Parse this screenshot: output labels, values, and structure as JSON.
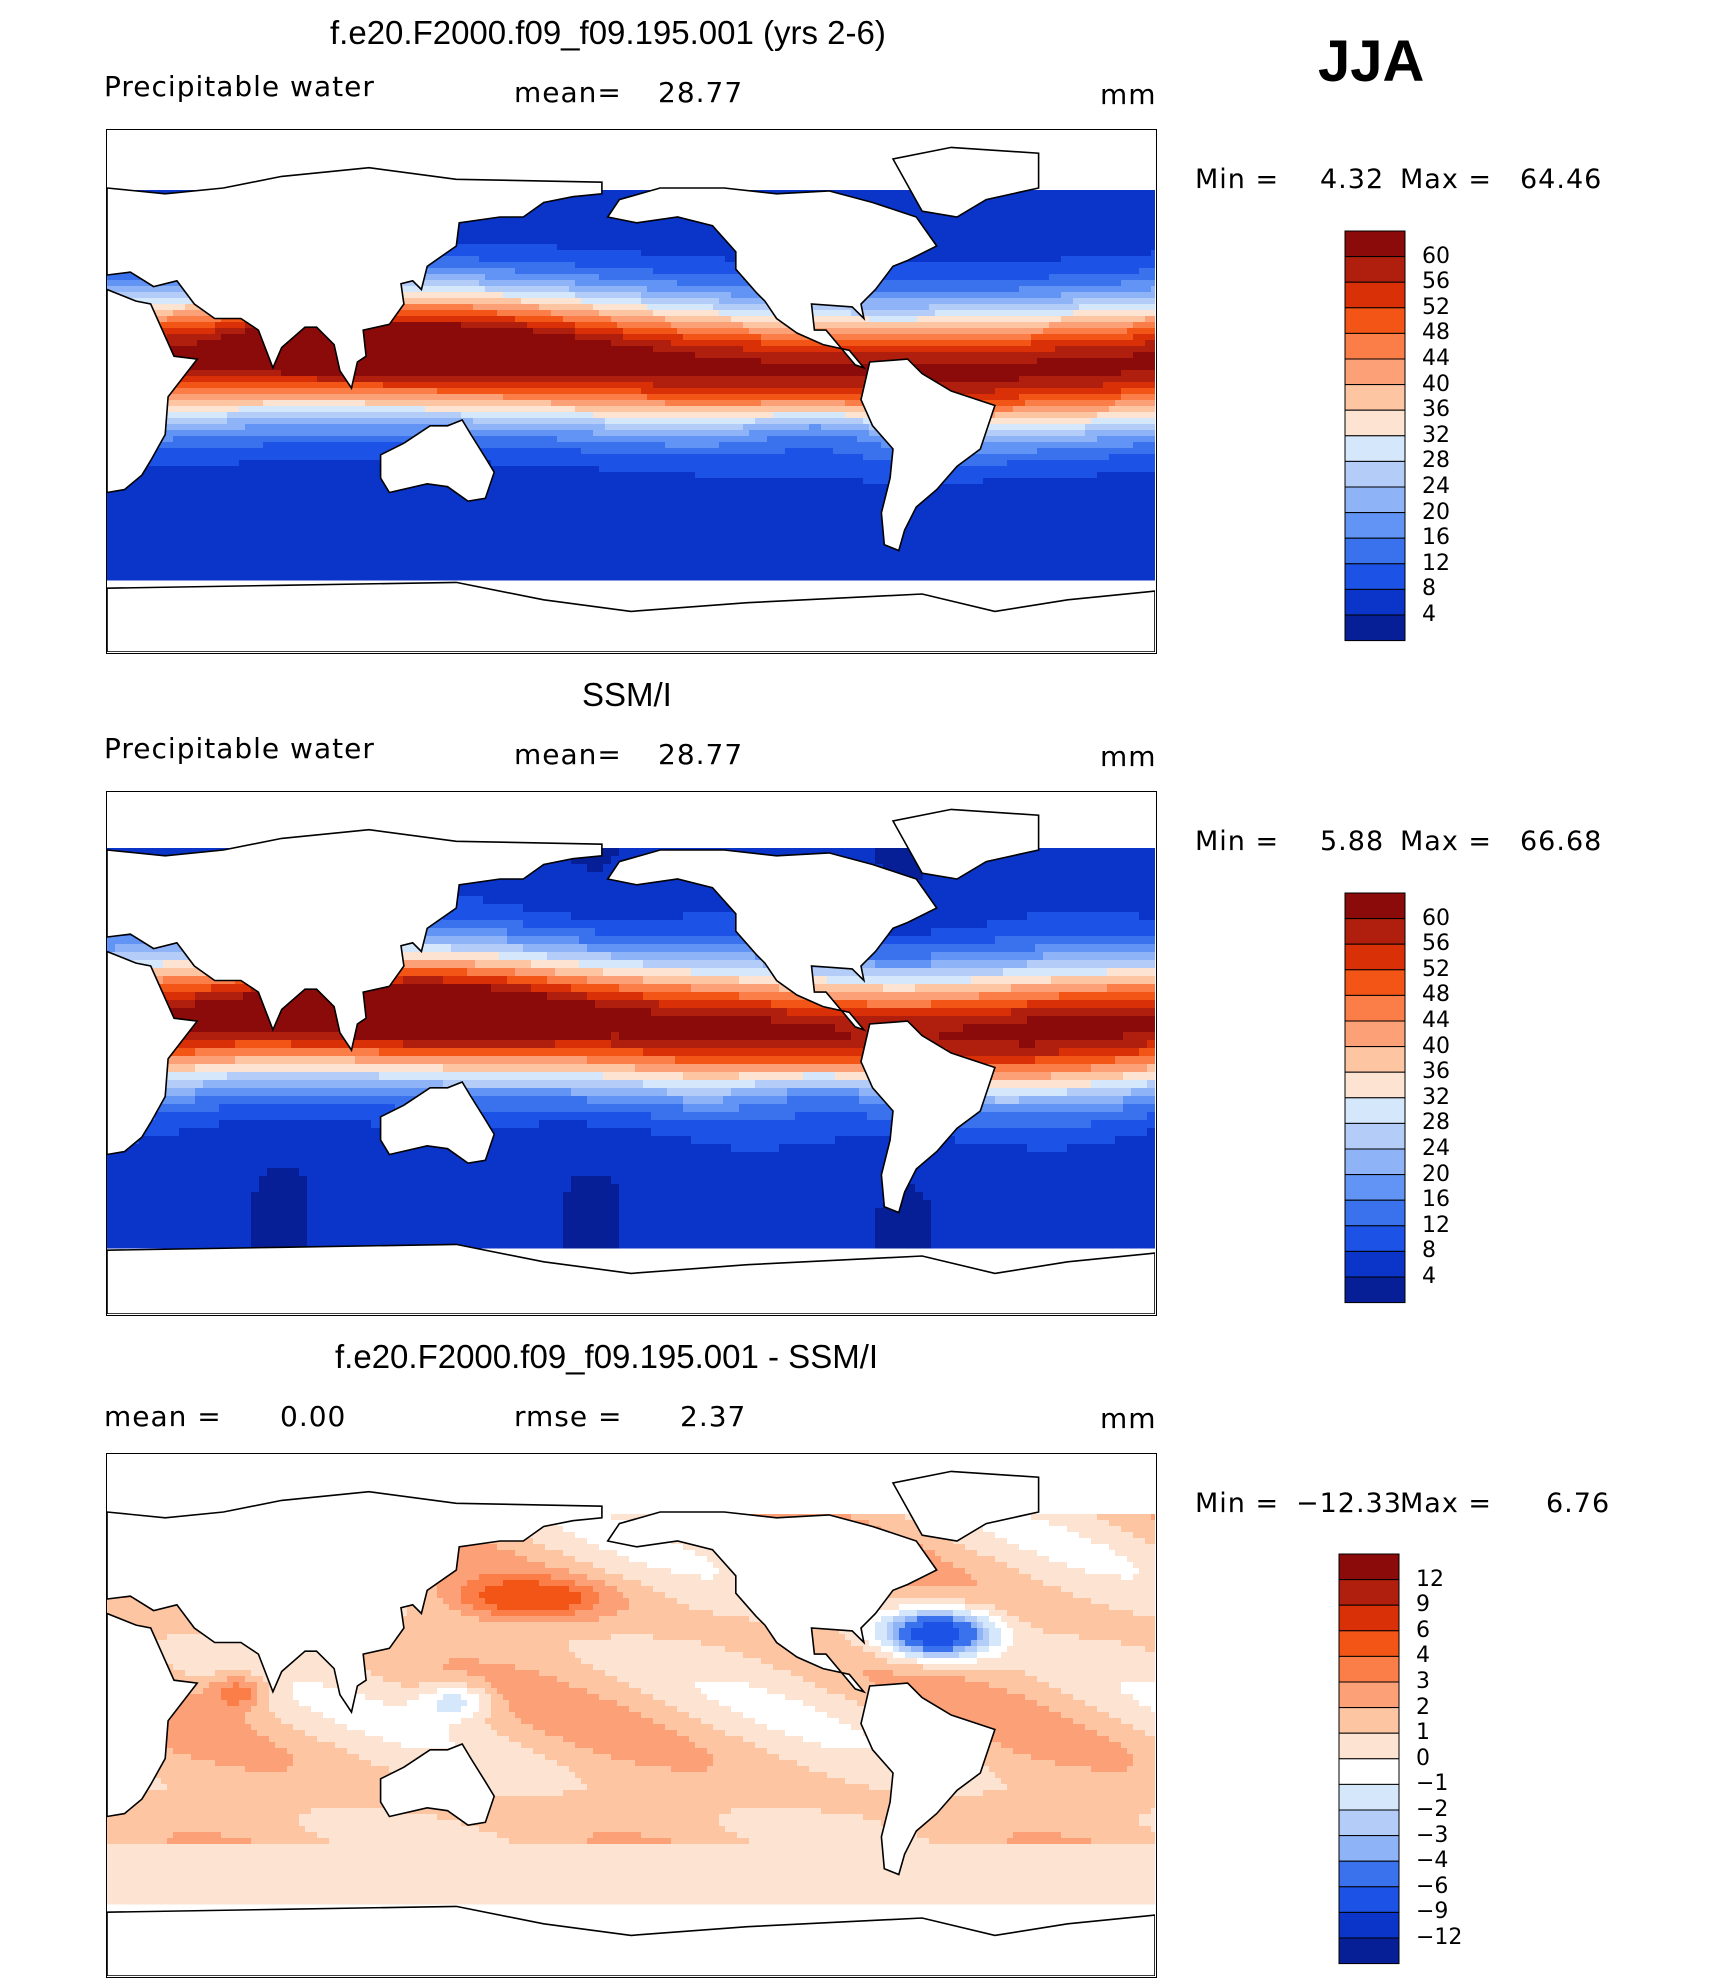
{
  "season": "JJA",
  "chart_data": [
    {
      "type": "heatmap",
      "title": "f.e20.F2000.f09_f09.195.001 (yrs 2-6)",
      "variable": "Precipitable water",
      "stat_label": "mean=",
      "stat_value": "28.77",
      "units": "mm",
      "min_label": "Min =",
      "min_value": "4.32",
      "max_label": "Max =",
      "max_value": "64.46",
      "levels": [
        "60",
        "56",
        "52",
        "48",
        "44",
        "40",
        "36",
        "32",
        "28",
        "24",
        "20",
        "16",
        "12",
        "8",
        "4"
      ],
      "colors": [
        "#8b0a0a",
        "#b01e0e",
        "#d93008",
        "#f25516",
        "#fb7d47",
        "#fca077",
        "#fdc5a2",
        "#fde4d2",
        "#d4e7fb",
        "#b3cdf8",
        "#8eb3f7",
        "#6294f5",
        "#3a71ed",
        "#1c52e6",
        "#0b35c8",
        "#071f96"
      ]
    },
    {
      "type": "heatmap",
      "title": "SSM/I",
      "variable": "Precipitable water",
      "stat_label": "mean=",
      "stat_value": "28.77",
      "units": "mm",
      "min_label": "Min =",
      "min_value": "5.88",
      "max_label": "Max =",
      "max_value": "66.68",
      "levels": [
        "60",
        "56",
        "52",
        "48",
        "44",
        "40",
        "36",
        "32",
        "28",
        "24",
        "20",
        "16",
        "12",
        "8",
        "4"
      ],
      "colors": [
        "#8b0a0a",
        "#b01e0e",
        "#d93008",
        "#f25516",
        "#fb7d47",
        "#fca077",
        "#fdc5a2",
        "#fde4d2",
        "#d4e7fb",
        "#b3cdf8",
        "#8eb3f7",
        "#6294f5",
        "#3a71ed",
        "#1c52e6",
        "#0b35c8",
        "#071f96"
      ]
    },
    {
      "type": "heatmap",
      "title": "f.e20.F2000.f09_f09.195.001 - SSM/I",
      "variable": "",
      "stat_label": "mean =",
      "stat_value": "0.00",
      "stat2_label": "rmse =",
      "stat2_value": "2.37",
      "units": "mm",
      "min_label": "Min =",
      "min_value": "−12.33",
      "max_label": "Max =",
      "max_value": "6.76",
      "levels": [
        "12",
        "9",
        "6",
        "4",
        "3",
        "2",
        "1",
        "0",
        "−1",
        "−2",
        "−3",
        "−4",
        "−6",
        "−9",
        "−12"
      ],
      "colors": [
        "#8b0a0a",
        "#b01e0e",
        "#d93008",
        "#f25516",
        "#fb7d47",
        "#fca077",
        "#fdc5a2",
        "#fde4d2",
        "#ffffff",
        "#d4e7fb",
        "#b3cdf8",
        "#8eb3f7",
        "#3a71ed",
        "#1c52e6",
        "#0b35c8",
        "#071f96"
      ]
    }
  ]
}
